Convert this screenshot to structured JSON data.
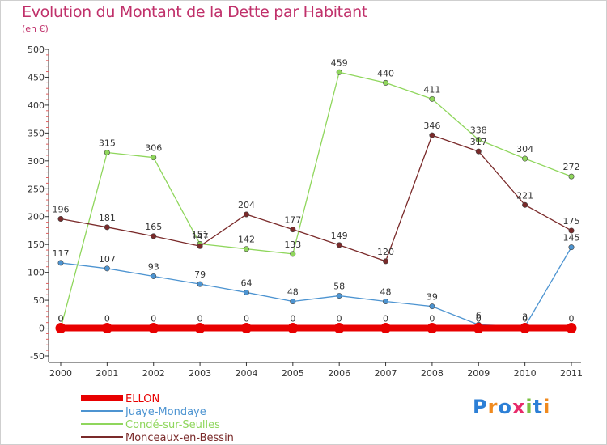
{
  "title": "Evolution du Montant de la Dette par Habitant",
  "subtitle": "(en €)",
  "logo": "Proxiti",
  "chart_data": {
    "type": "line",
    "x": [
      "2000",
      "2001",
      "2002",
      "2003",
      "2004",
      "2005",
      "2006",
      "2007",
      "2008",
      "2009",
      "2010",
      "2011"
    ],
    "ylim": [
      -50,
      500
    ],
    "yticks": [
      -50,
      0,
      50,
      100,
      150,
      200,
      250,
      300,
      350,
      400,
      450,
      500
    ],
    "grid": false,
    "legend_position": "bottom-left",
    "series": [
      {
        "name": "ELLON",
        "color": "#e80000",
        "values": [
          0,
          0,
          0,
          0,
          0,
          0,
          0,
          0,
          0,
          0,
          0,
          0
        ]
      },
      {
        "name": "Juaye-Mondaye",
        "color": "#4d94d1",
        "values": [
          117,
          107,
          93,
          79,
          64,
          48,
          58,
          48,
          39,
          6,
          3,
          145
        ]
      },
      {
        "name": "Condé-sur-Seulles",
        "color": "#8fd65c",
        "values": [
          0,
          315,
          306,
          151,
          142,
          133,
          459,
          440,
          411,
          338,
          304,
          272
        ]
      },
      {
        "name": "Monceaux-en-Bessin",
        "color": "#7a2a2a",
        "values": [
          196,
          181,
          165,
          147,
          204,
          177,
          149,
          120,
          346,
          317,
          221,
          175
        ]
      }
    ]
  }
}
